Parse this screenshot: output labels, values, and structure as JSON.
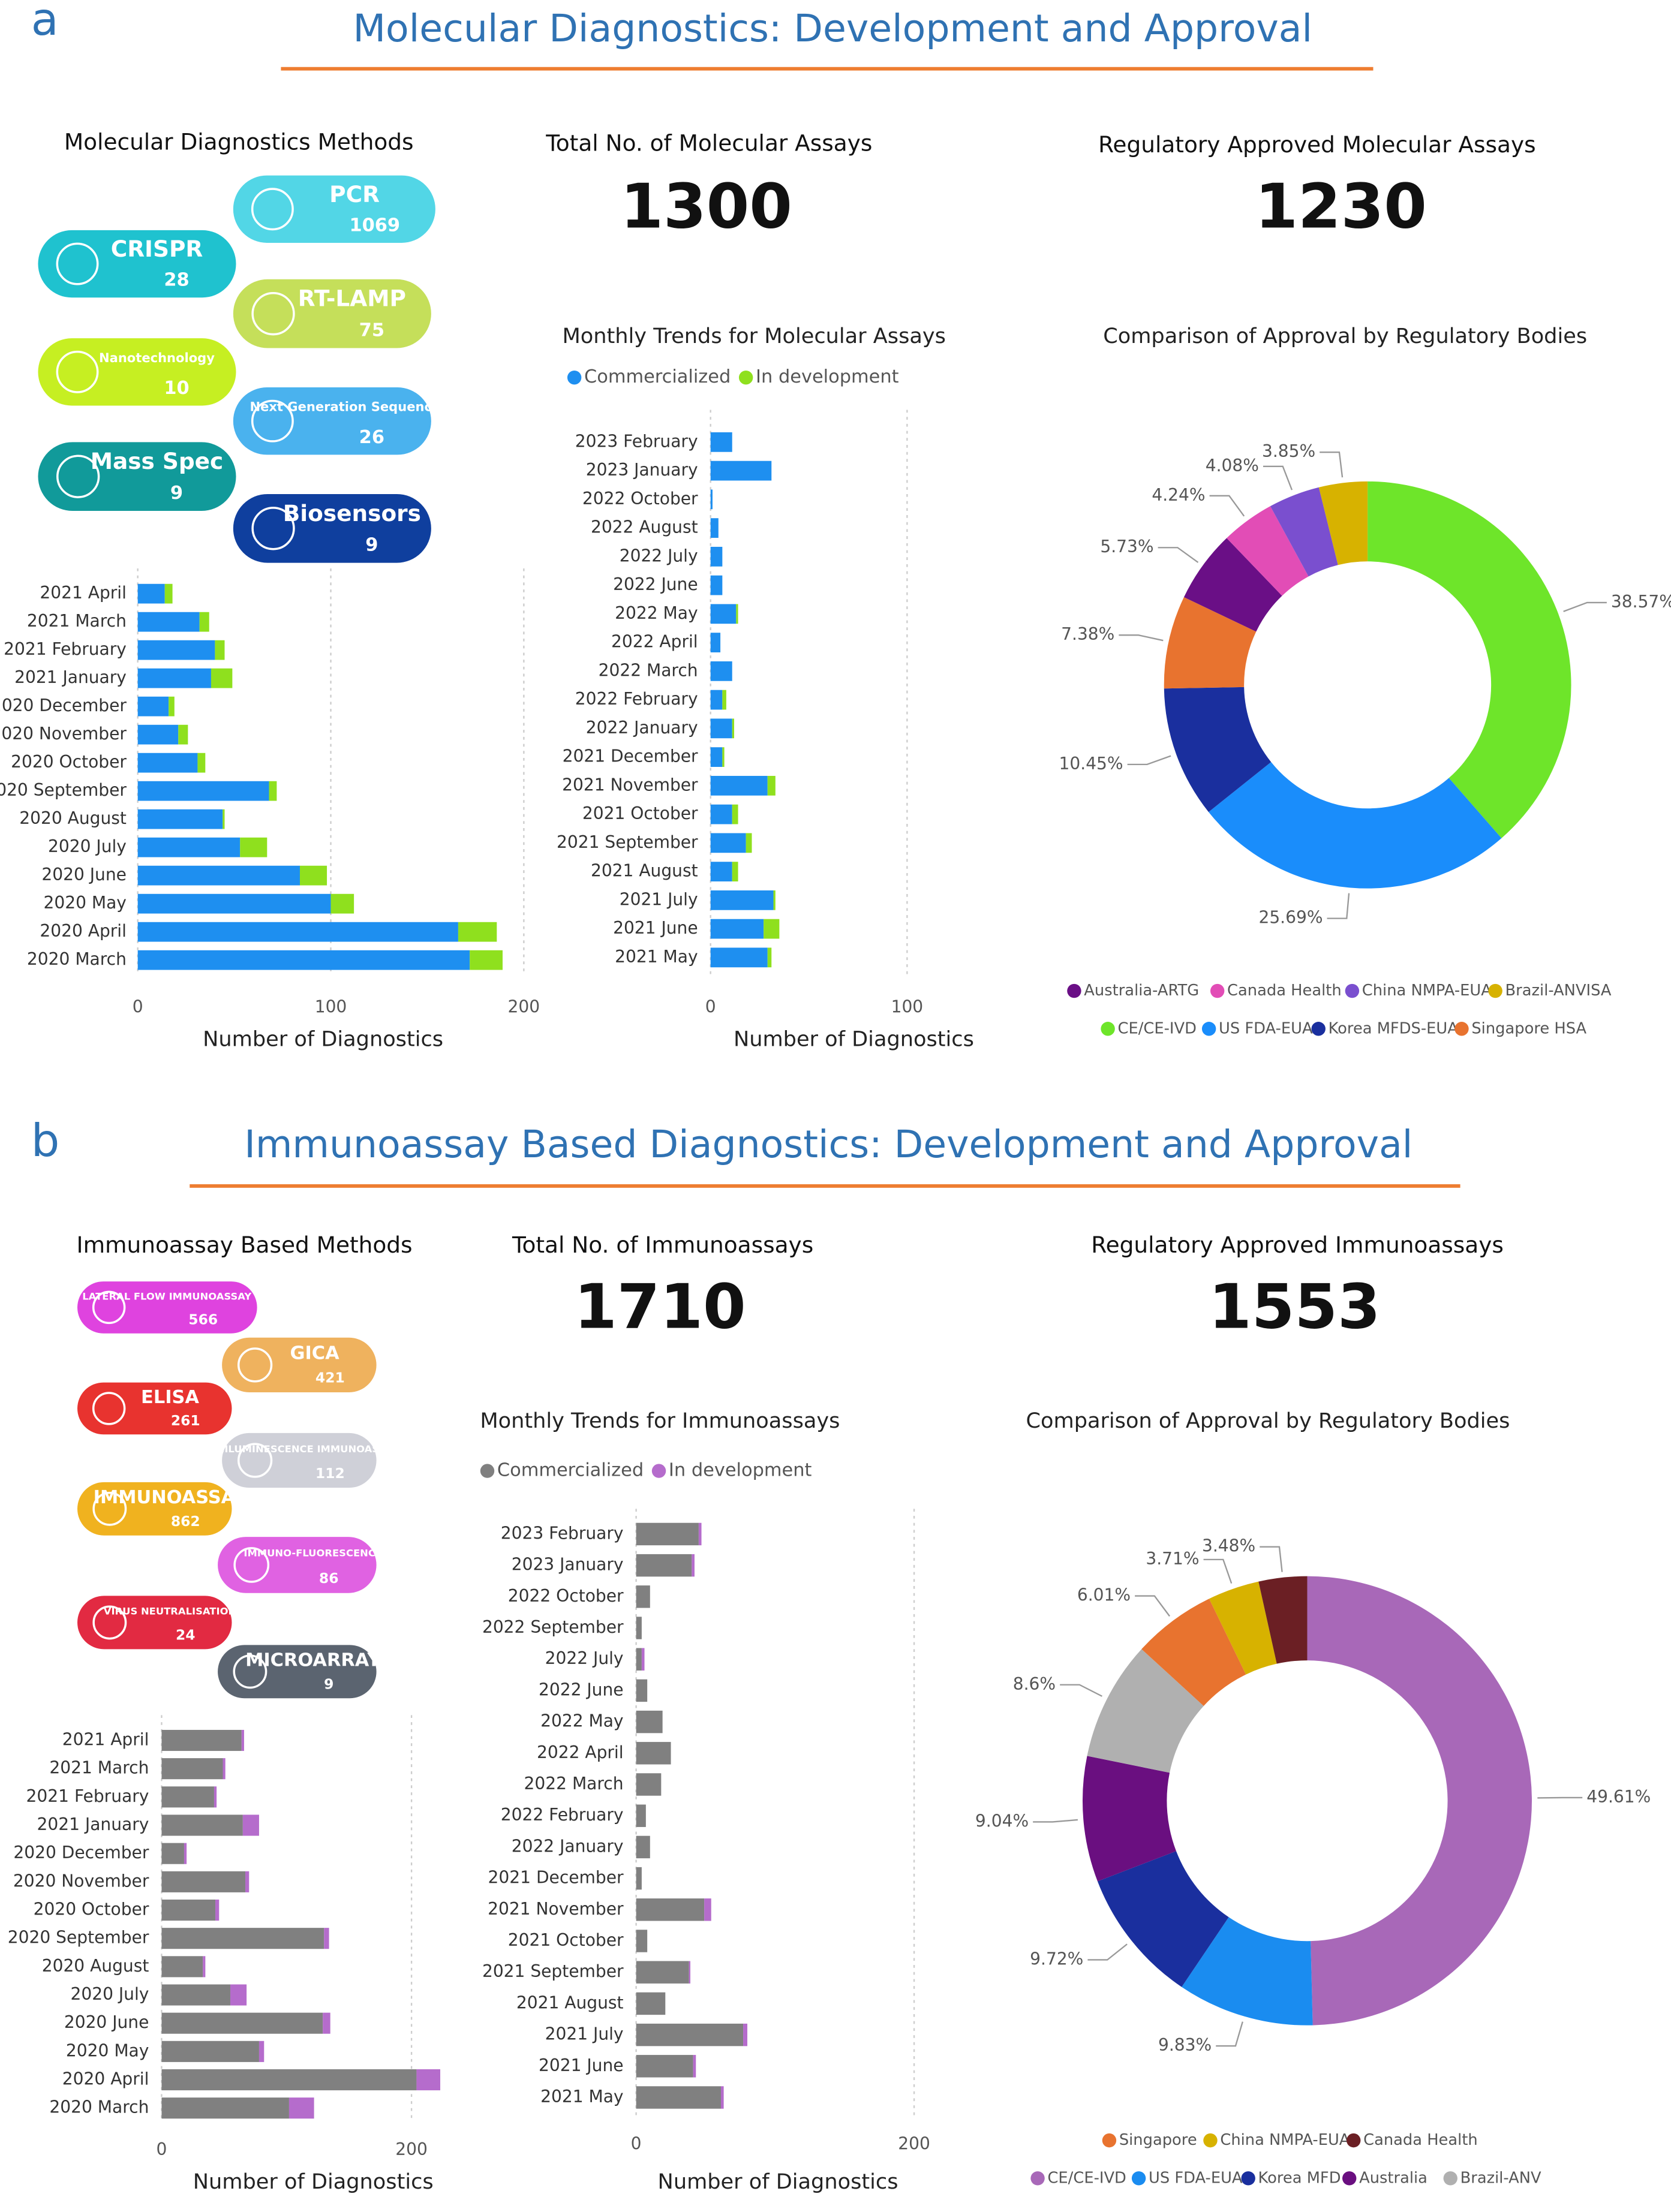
{
  "panels": [
    {
      "label": "a",
      "title": "Molecular Diagnostics: Development and Approval",
      "methods_title": "Molecular Diagnostics Methods",
      "methods": [
        {
          "name": "PCR",
          "count": 1069,
          "color": "#52d6e6"
        },
        {
          "name": "CRISPR",
          "count": 28,
          "color": "#1fc2cf"
        },
        {
          "name": "RT-LAMP",
          "count": 75,
          "color": "#c5df5a"
        },
        {
          "name": "Nanotechnology",
          "count": 10,
          "color": "#c6ef22"
        },
        {
          "name": "Next Generation Sequencing",
          "count": 26,
          "color": "#4ab2ee"
        },
        {
          "name": "Mass Spec",
          "count": 9,
          "color": "#119a9a"
        },
        {
          "name": "Biosensors",
          "count": 9,
          "color": "#0f3f9e"
        }
      ],
      "stats": [
        {
          "label": "Total No. of Molecular Assays",
          "value": 1300
        },
        {
          "label": "Regulatory Approved Molecular Assays",
          "value": 1230
        }
      ]
    },
    {
      "label": "b",
      "title": "Immunoassay Based Diagnostics: Development and Approval",
      "methods_title": "Immunoassay Based Methods",
      "methods": [
        {
          "name": "LATERAL FLOW IMMUNOASSAY (LFIA)",
          "count": 566,
          "color": "#df43df"
        },
        {
          "name": "GICA",
          "count": 421,
          "color": "#efb25e"
        },
        {
          "name": "ELISA",
          "count": 261,
          "color": "#e8332f"
        },
        {
          "name": "CHEMILUMINESCENCE IMMUNOASSAY (CLIA)",
          "count": 112,
          "color": "#cfd0d8"
        },
        {
          "name": "IMMUNOASSAY",
          "count": 862,
          "color": "#f0b21f"
        },
        {
          "name": "IMMUNO-FLUORESCENCE",
          "count": 86,
          "color": "#e062e2"
        },
        {
          "name": "VIRUS NEUTRALISATION",
          "count": 24,
          "color": "#e22a42"
        },
        {
          "name": "MICROARRAY",
          "count": 9,
          "color": "#5b6470"
        }
      ],
      "stats": [
        {
          "label": "Total No. of Immunoassays",
          "value": 1710
        },
        {
          "label": "Regulatory Approved Immunoassays",
          "value": 1553
        }
      ]
    }
  ],
  "chart_data": [
    {
      "type": "hbar",
      "xlabel": "Number of Diagnostics",
      "categories": [
        "2021 April",
        "2021 March",
        "2021 February",
        "2021 January",
        "2020 December",
        "2020 November",
        "2020 October",
        "2020 September",
        "2020 August",
        "2020 July",
        "2020 June",
        "2020 May",
        "2020 April",
        "2020 March"
      ],
      "series": [
        {
          "color": "#1e8ff0",
          "values": [
            14,
            32,
            40,
            38,
            16,
            21,
            31,
            68,
            44,
            53,
            84,
            100,
            166,
            172
          ]
        },
        {
          "color": "#8fe01e",
          "values": [
            4,
            5,
            5,
            11,
            3,
            5,
            4,
            4,
            1,
            14,
            14,
            12,
            20,
            17
          ]
        }
      ],
      "xlim": [
        0,
        200
      ],
      "xticks": [
        0,
        100,
        200
      ],
      "grid": true
    },
    {
      "type": "hbar",
      "title": "Monthly Trends for Molecular Assays",
      "xlabel": "Number of Diagnostics",
      "categories": [
        "2023 February",
        "2023 January",
        "2022 October",
        "2022 August",
        "2022 July",
        "2022 June",
        "2022 May",
        "2022 April",
        "2022 March",
        "2022 February",
        "2022 January",
        "2021 December",
        "2021 November",
        "2021 October",
        "2021 September",
        "2021 August",
        "2021 July",
        "2021 June",
        "2021 May"
      ],
      "series": [
        {
          "name": "Commercialized",
          "color": "#1e8ff0",
          "values": [
            11,
            31,
            1,
            4,
            6,
            6,
            13,
            5,
            11,
            6,
            11,
            6,
            29,
            11,
            18,
            11,
            32,
            27,
            29
          ]
        },
        {
          "name": "In development",
          "color": "#8fe01e",
          "values": [
            0,
            0,
            0,
            0,
            0,
            0,
            1,
            0,
            0,
            2,
            1,
            1,
            4,
            3,
            3,
            3,
            1,
            8,
            2
          ]
        }
      ],
      "xlim": [
        0,
        130
      ],
      "xticks": [
        0,
        100
      ],
      "grid": true,
      "legend": "top-left"
    },
    {
      "type": "donut",
      "title": "Comparison of Approval by Regulatory Bodies",
      "categories": [
        "CE/CE-IVD",
        "US FDA-EUA",
        "Korea MFDS-EUA",
        "Singapore HSA",
        "Australia-ARTG",
        "Canada Health",
        "China NMPA-EUA",
        "Brazil-ANVISA"
      ],
      "values": [
        38.57,
        25.69,
        10.45,
        7.38,
        5.73,
        4.24,
        4.08,
        3.85
      ],
      "value_labels": [
        "38.57%",
        "25.69%",
        "10.45%",
        "7.38%",
        "5.73%",
        "4.24%",
        "4.08%",
        "3.85%"
      ],
      "colors": [
        "#6ee52a",
        "#1a8dfb",
        "#1a2f9e",
        "#e8732f",
        "#6a0f86",
        "#e24db6",
        "#7a4fcf",
        "#d7b200"
      ],
      "legend": "bottom"
    },
    {
      "type": "hbar",
      "xlabel": "Number of Diagnostics",
      "categories": [
        "2021 April",
        "2021 March",
        "2021 February",
        "2021 January",
        "2020 December",
        "2020 November",
        "2020 October",
        "2020 September",
        "2020 August",
        "2020 July",
        "2020 June",
        "2020 May",
        "2020 April",
        "2020 March"
      ],
      "series": [
        {
          "color": "#808080",
          "values": [
            64,
            49,
            42,
            65,
            18,
            67,
            43,
            130,
            33,
            55,
            129,
            78,
            204,
            102
          ]
        },
        {
          "color": "#b56ccc",
          "values": [
            2,
            2,
            2,
            13,
            2,
            3,
            3,
            4,
            2,
            13,
            6,
            4,
            19,
            20
          ]
        }
      ],
      "xlim": [
        0,
        240
      ],
      "xticks": [
        0,
        200
      ],
      "grid": true
    },
    {
      "type": "hbar",
      "title": "Monthly Trends for Immunoassays",
      "xlabel": "Number of Diagnostics",
      "categories": [
        "2023 February",
        "2023 January",
        "2022 October",
        "2022 September",
        "2022 July",
        "2022 June",
        "2022 May",
        "2022 April",
        "2022 March",
        "2022 February",
        "2022 January",
        "2021 December",
        "2021 November",
        "2021 October",
        "2021 September",
        "2021 August",
        "2021 July",
        "2021 June",
        "2021 May"
      ],
      "series": [
        {
          "name": "Commercialized",
          "color": "#808080",
          "values": [
            45,
            40,
            10,
            4,
            4,
            8,
            19,
            25,
            18,
            7,
            10,
            4,
            49,
            8,
            38,
            21,
            77,
            41,
            61
          ]
        },
        {
          "name": "In development",
          "color": "#b56ccc",
          "values": [
            2,
            2,
            0,
            0,
            2,
            0,
            0,
            0,
            0,
            0,
            0,
            0,
            5,
            0,
            1,
            0,
            3,
            2,
            2
          ]
        }
      ],
      "xlim": [
        0,
        200
      ],
      "xticks": [
        0,
        200
      ],
      "grid": true,
      "legend": "top-left"
    },
    {
      "type": "donut",
      "title": "Comparison of Approval by Regulatory Bodies",
      "categories": [
        "CE/CE-IVD",
        "US FDA-EUA",
        "Korea MFD",
        "Australia",
        "Brazil-ANV",
        "Singapore",
        "China NMPA-EUA",
        "Canada Health"
      ],
      "values": [
        49.61,
        9.83,
        9.72,
        9.04,
        8.6,
        6.01,
        3.71,
        3.48
      ],
      "value_labels": [
        "49.61%",
        "9.83%",
        "9.72%",
        "9.04%",
        "8.6%",
        "6.01%",
        "3.71%",
        "3.48%"
      ],
      "colors": [
        "#a868b8",
        "#1a8cf0",
        "#1a2f9e",
        "#6a0f80",
        "#b0b0b0",
        "#e8732f",
        "#d7b200",
        "#6b1f24"
      ],
      "legend": "bottom"
    }
  ]
}
